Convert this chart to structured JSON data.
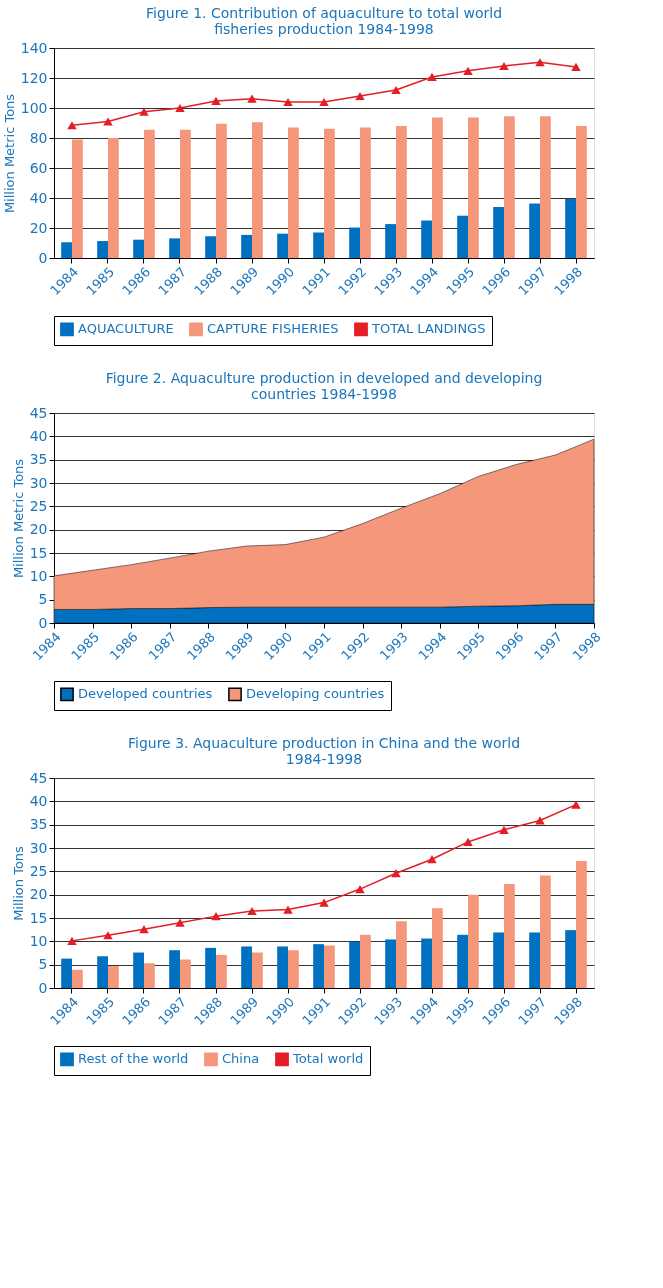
{
  "chart_data": [
    {
      "type": "bar",
      "title": "Figure 1.  Contribution of aquaculture to total world fisheries production 1984-1998",
      "ylabel": "Million Metric Tons",
      "categories": [
        "1984",
        "1985",
        "1986",
        "1987",
        "1988",
        "1989",
        "1990",
        "1991",
        "1992",
        "1993",
        "1994",
        "1995",
        "1996",
        "1997",
        "1998"
      ],
      "series": [
        {
          "name": "AQUACULTURE",
          "color": "#0070c0",
          "values": [
            10.5,
            11.3,
            12.2,
            13.1,
            14.5,
            15.4,
            16.2,
            17,
            20.3,
            22.6,
            25,
            28.2,
            34,
            36.3,
            39.4
          ]
        },
        {
          "name": "CAPTURE FISHERIES",
          "color": "#f4977a",
          "values": [
            79,
            80,
            85.5,
            85.5,
            89.5,
            90.5,
            87,
            86.2,
            87,
            88,
            93.6,
            93.6,
            94.5,
            94.5,
            88
          ]
        },
        {
          "name": "TOTAL LANDINGS",
          "type": "line",
          "color": "#e31e24",
          "values": [
            88.5,
            91,
            97.5,
            100,
            104.7,
            106.2,
            104,
            104,
            108,
            112,
            120.7,
            124.8,
            128,
            130.5,
            127.4
          ]
        }
      ],
      "ylim": [
        0,
        140
      ],
      "yticks": [
        0,
        20,
        40,
        60,
        80,
        100,
        120,
        140
      ],
      "grid": "y",
      "legend": "bottom",
      "marker": "triangle"
    },
    {
      "type": "area",
      "stacked": true,
      "title": "Figure 2.  Aquaculture production in developed and developing countries 1984-1998",
      "ylabel": "Million Metric Tons",
      "categories": [
        "1984",
        "1985",
        "1986",
        "1987",
        "1988",
        "1989",
        "1990",
        "1991",
        "1992",
        "1993",
        "1994",
        "1995",
        "1996",
        "1997",
        "1998"
      ],
      "series": [
        {
          "name": "Developed countries",
          "color": "#0070c0",
          "values": [
            2.9,
            2.9,
            3.1,
            3.1,
            3.3,
            3.4,
            3.4,
            3.4,
            3.4,
            3.4,
            3.4,
            3.6,
            3.7,
            4.0,
            4.0
          ]
        },
        {
          "name": "Developing countries",
          "color": "#f4977a",
          "values": [
            7.2,
            8.4,
            9.4,
            10.8,
            12.1,
            13.1,
            13.4,
            15.0,
            17.9,
            21.2,
            24.3,
            27.8,
            30.3,
            32.0,
            35.4
          ]
        }
      ],
      "ylim": [
        0,
        45
      ],
      "yticks": [
        0,
        5,
        10,
        15,
        20,
        25,
        30,
        35,
        40,
        45
      ],
      "grid": "y",
      "legend": "bottom"
    },
    {
      "type": "bar",
      "title": "Figure 3.  Aquaculture production in China and the world 1984-1998",
      "ylabel": "Million Tons",
      "categories": [
        "1984",
        "1985",
        "1986",
        "1987",
        "1988",
        "1989",
        "1990",
        "1991",
        "1992",
        "1993",
        "1994",
        "1995",
        "1996",
        "1997",
        "1998"
      ],
      "series": [
        {
          "name": "Rest of the world",
          "color": "#0070c0",
          "values": [
            6.3,
            6.8,
            7.6,
            8.1,
            8.6,
            8.9,
            8.9,
            9.4,
            9.9,
            10.4,
            10.6,
            11.4,
            11.9,
            11.9,
            12.4
          ]
        },
        {
          "name": "China",
          "color": "#f4977a",
          "values": [
            3.9,
            4.7,
            5.3,
            6.1,
            7.1,
            7.6,
            8.1,
            9.1,
            11.4,
            14.3,
            17.1,
            20.0,
            22.3,
            24.1,
            27.2
          ]
        },
        {
          "name": "Total world",
          "type": "line",
          "color": "#e31e24",
          "values": [
            10.1,
            11.3,
            12.6,
            14.0,
            15.4,
            16.5,
            16.8,
            18.3,
            21.2,
            24.6,
            27.6,
            31.3,
            33.9,
            35.9,
            39.3
          ]
        }
      ],
      "ylim": [
        0,
        45
      ],
      "yticks": [
        0,
        5,
        10,
        15,
        20,
        25,
        30,
        35,
        40,
        45
      ],
      "grid": "y",
      "legend": "bottom",
      "marker": "triangle"
    }
  ]
}
